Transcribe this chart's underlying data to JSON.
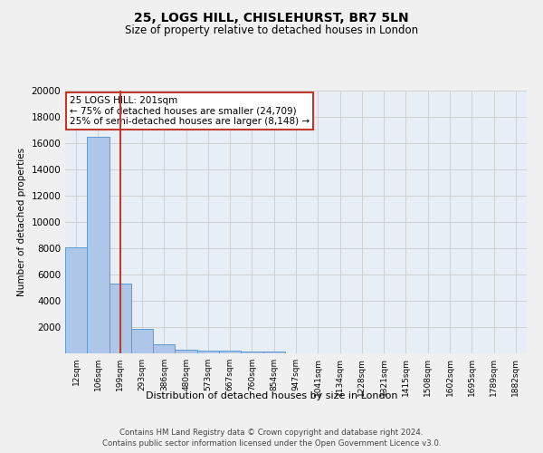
{
  "title1": "25, LOGS HILL, CHISLEHURST, BR7 5LN",
  "title2": "Size of property relative to detached houses in London",
  "xlabel": "Distribution of detached houses by size in London",
  "ylabel": "Number of detached properties",
  "categories": [
    "12sqm",
    "106sqm",
    "199sqm",
    "293sqm",
    "386sqm",
    "480sqm",
    "573sqm",
    "667sqm",
    "760sqm",
    "854sqm",
    "947sqm",
    "1041sqm",
    "1134sqm",
    "1228sqm",
    "1321sqm",
    "1415sqm",
    "1508sqm",
    "1602sqm",
    "1695sqm",
    "1789sqm",
    "1882sqm"
  ],
  "values": [
    8100,
    16500,
    5300,
    1850,
    700,
    300,
    220,
    190,
    160,
    150,
    0,
    0,
    0,
    0,
    0,
    0,
    0,
    0,
    0,
    0,
    0
  ],
  "bar_color": "#aec6e8",
  "bar_edge_color": "#5b9bd5",
  "vline_x_idx": 2,
  "vline_color": "#c0392b",
  "annotation_box_text": "25 LOGS HILL: 201sqm\n← 75% of detached houses are smaller (24,709)\n25% of semi-detached houses are larger (8,148) →",
  "annotation_box_color": "#c0392b",
  "annotation_box_bg": "#ffffff",
  "ylim": [
    0,
    20000
  ],
  "yticks": [
    0,
    2000,
    4000,
    6000,
    8000,
    10000,
    12000,
    14000,
    16000,
    18000,
    20000
  ],
  "grid_color": "#cccccc",
  "bg_color": "#e8eef5",
  "fig_bg_color": "#f0f0f0",
  "footer1": "Contains HM Land Registry data © Crown copyright and database right 2024.",
  "footer2": "Contains public sector information licensed under the Open Government Licence v3.0."
}
